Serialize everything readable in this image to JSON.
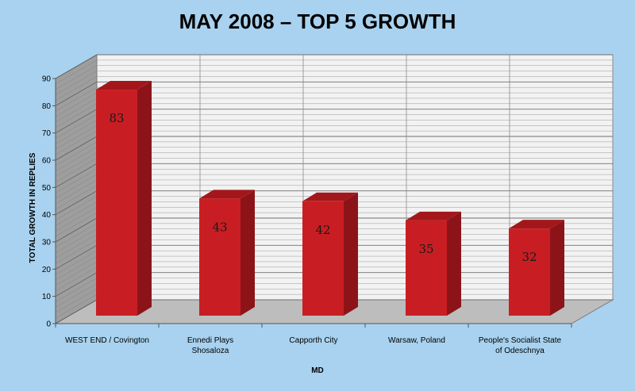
{
  "chart_data": {
    "type": "bar",
    "title": "MAY 2008 – TOP 5 GROWTH",
    "xlabel": "MD",
    "ylabel": "TOTAL GROWTH IN REPLIES",
    "categories": [
      [
        "WEST END / Covington"
      ],
      [
        "Ennedi Plays",
        "Shosaloza"
      ],
      [
        "Capporth City"
      ],
      [
        "Warsaw, Poland"
      ],
      [
        "People's Socialist State",
        "of Odeschnya"
      ]
    ],
    "values": [
      83,
      43,
      42,
      35,
      32
    ],
    "data_labels": [
      "83",
      "43",
      "42",
      "35",
      "32"
    ],
    "ylim": [
      0,
      90
    ],
    "yticks": [
      "0",
      "10",
      "20",
      "30",
      "40",
      "50",
      "60",
      "70",
      "80",
      "90"
    ],
    "grid": true,
    "colors": {
      "background": "#a8d2ef",
      "bar_front": "#c81e23",
      "bar_side": "#8c1418",
      "bar_top": "#a3171b",
      "back_wall": "#f2f2f2",
      "side_wall": "#9e9e9e",
      "floor": "#bdbdbd"
    }
  }
}
